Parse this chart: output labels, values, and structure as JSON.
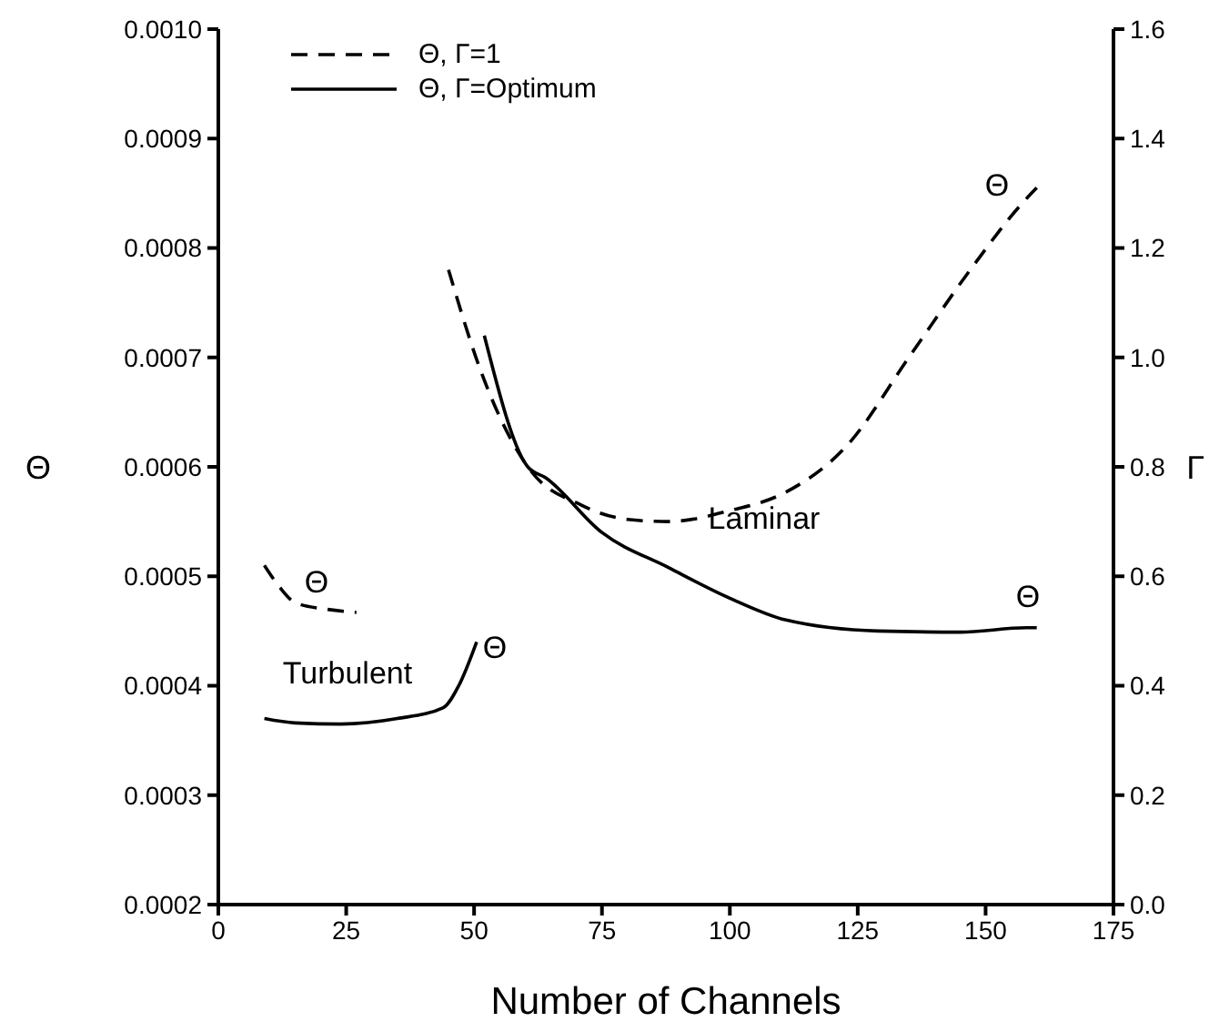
{
  "chart_data": {
    "type": "line",
    "xlabel": "Number of Channels",
    "ylabel": "Θ",
    "y2label": "Γ",
    "xlim": [
      0,
      175
    ],
    "xticks": [
      0,
      25,
      50,
      75,
      100,
      125,
      150,
      175
    ],
    "ylim": [
      0.0002,
      0.001
    ],
    "yticks": [
      0.0002,
      0.0003,
      0.0004,
      0.0005,
      0.0006,
      0.0007,
      0.0008,
      0.0009,
      {
        "value": 0.001,
        "label": "0.0010"
      }
    ],
    "y2lim": [
      0,
      1.6
    ],
    "y2ticks": [
      {
        "value": 0,
        "label": "0.0"
      },
      0.2,
      0.4,
      0.6,
      0.8,
      {
        "value": 1,
        "label": "1.0"
      },
      1.2,
      1.4,
      1.6
    ],
    "legend": "top left",
    "grid": false,
    "series": [
      {
        "name": "Θ,  Γ=1",
        "color": "#000000",
        "line_style": "dashed",
        "x": [
          9,
          12,
          15,
          21,
          27,
          36,
          45,
          51.6,
          60.5,
          71,
          80,
          88,
          100,
          111,
          123,
          135,
          147,
          157,
          160
        ],
        "values": [
          0.00051,
          0.00049,
          0.000476,
          0.00047,
          0.000467,
          null,
          0.00078,
          0.000684,
          0.0006,
          0.000565,
          0.000552,
          0.00055,
          0.00056,
          0.000577,
          0.00062,
          0.0007,
          0.00078,
          0.00084,
          0.000855
        ]
      },
      {
        "name": "Θ,  Γ=Optimum",
        "color": "#000000",
        "line_style": "solid",
        "x": [
          9,
          15,
          24,
          35,
          44,
          47,
          50.5,
          51,
          52,
          60.5,
          64,
          75,
          88,
          100,
          111,
          129,
          145,
          158,
          160
        ],
        "values": [
          0.00037,
          0.000366,
          0.000365,
          0.00037,
          0.00038,
          0.0004,
          0.00044,
          null,
          0.00072,
          0.0006,
          0.00059,
          0.00054,
          0.000508,
          0.00048,
          0.00046,
          0.00045,
          0.000449,
          0.000453,
          0.000453
        ]
      }
    ],
    "annotations": [
      "Θ",
      "Turbulent",
      "Θ",
      "Laminar",
      "Θ",
      "Θ"
    ]
  }
}
